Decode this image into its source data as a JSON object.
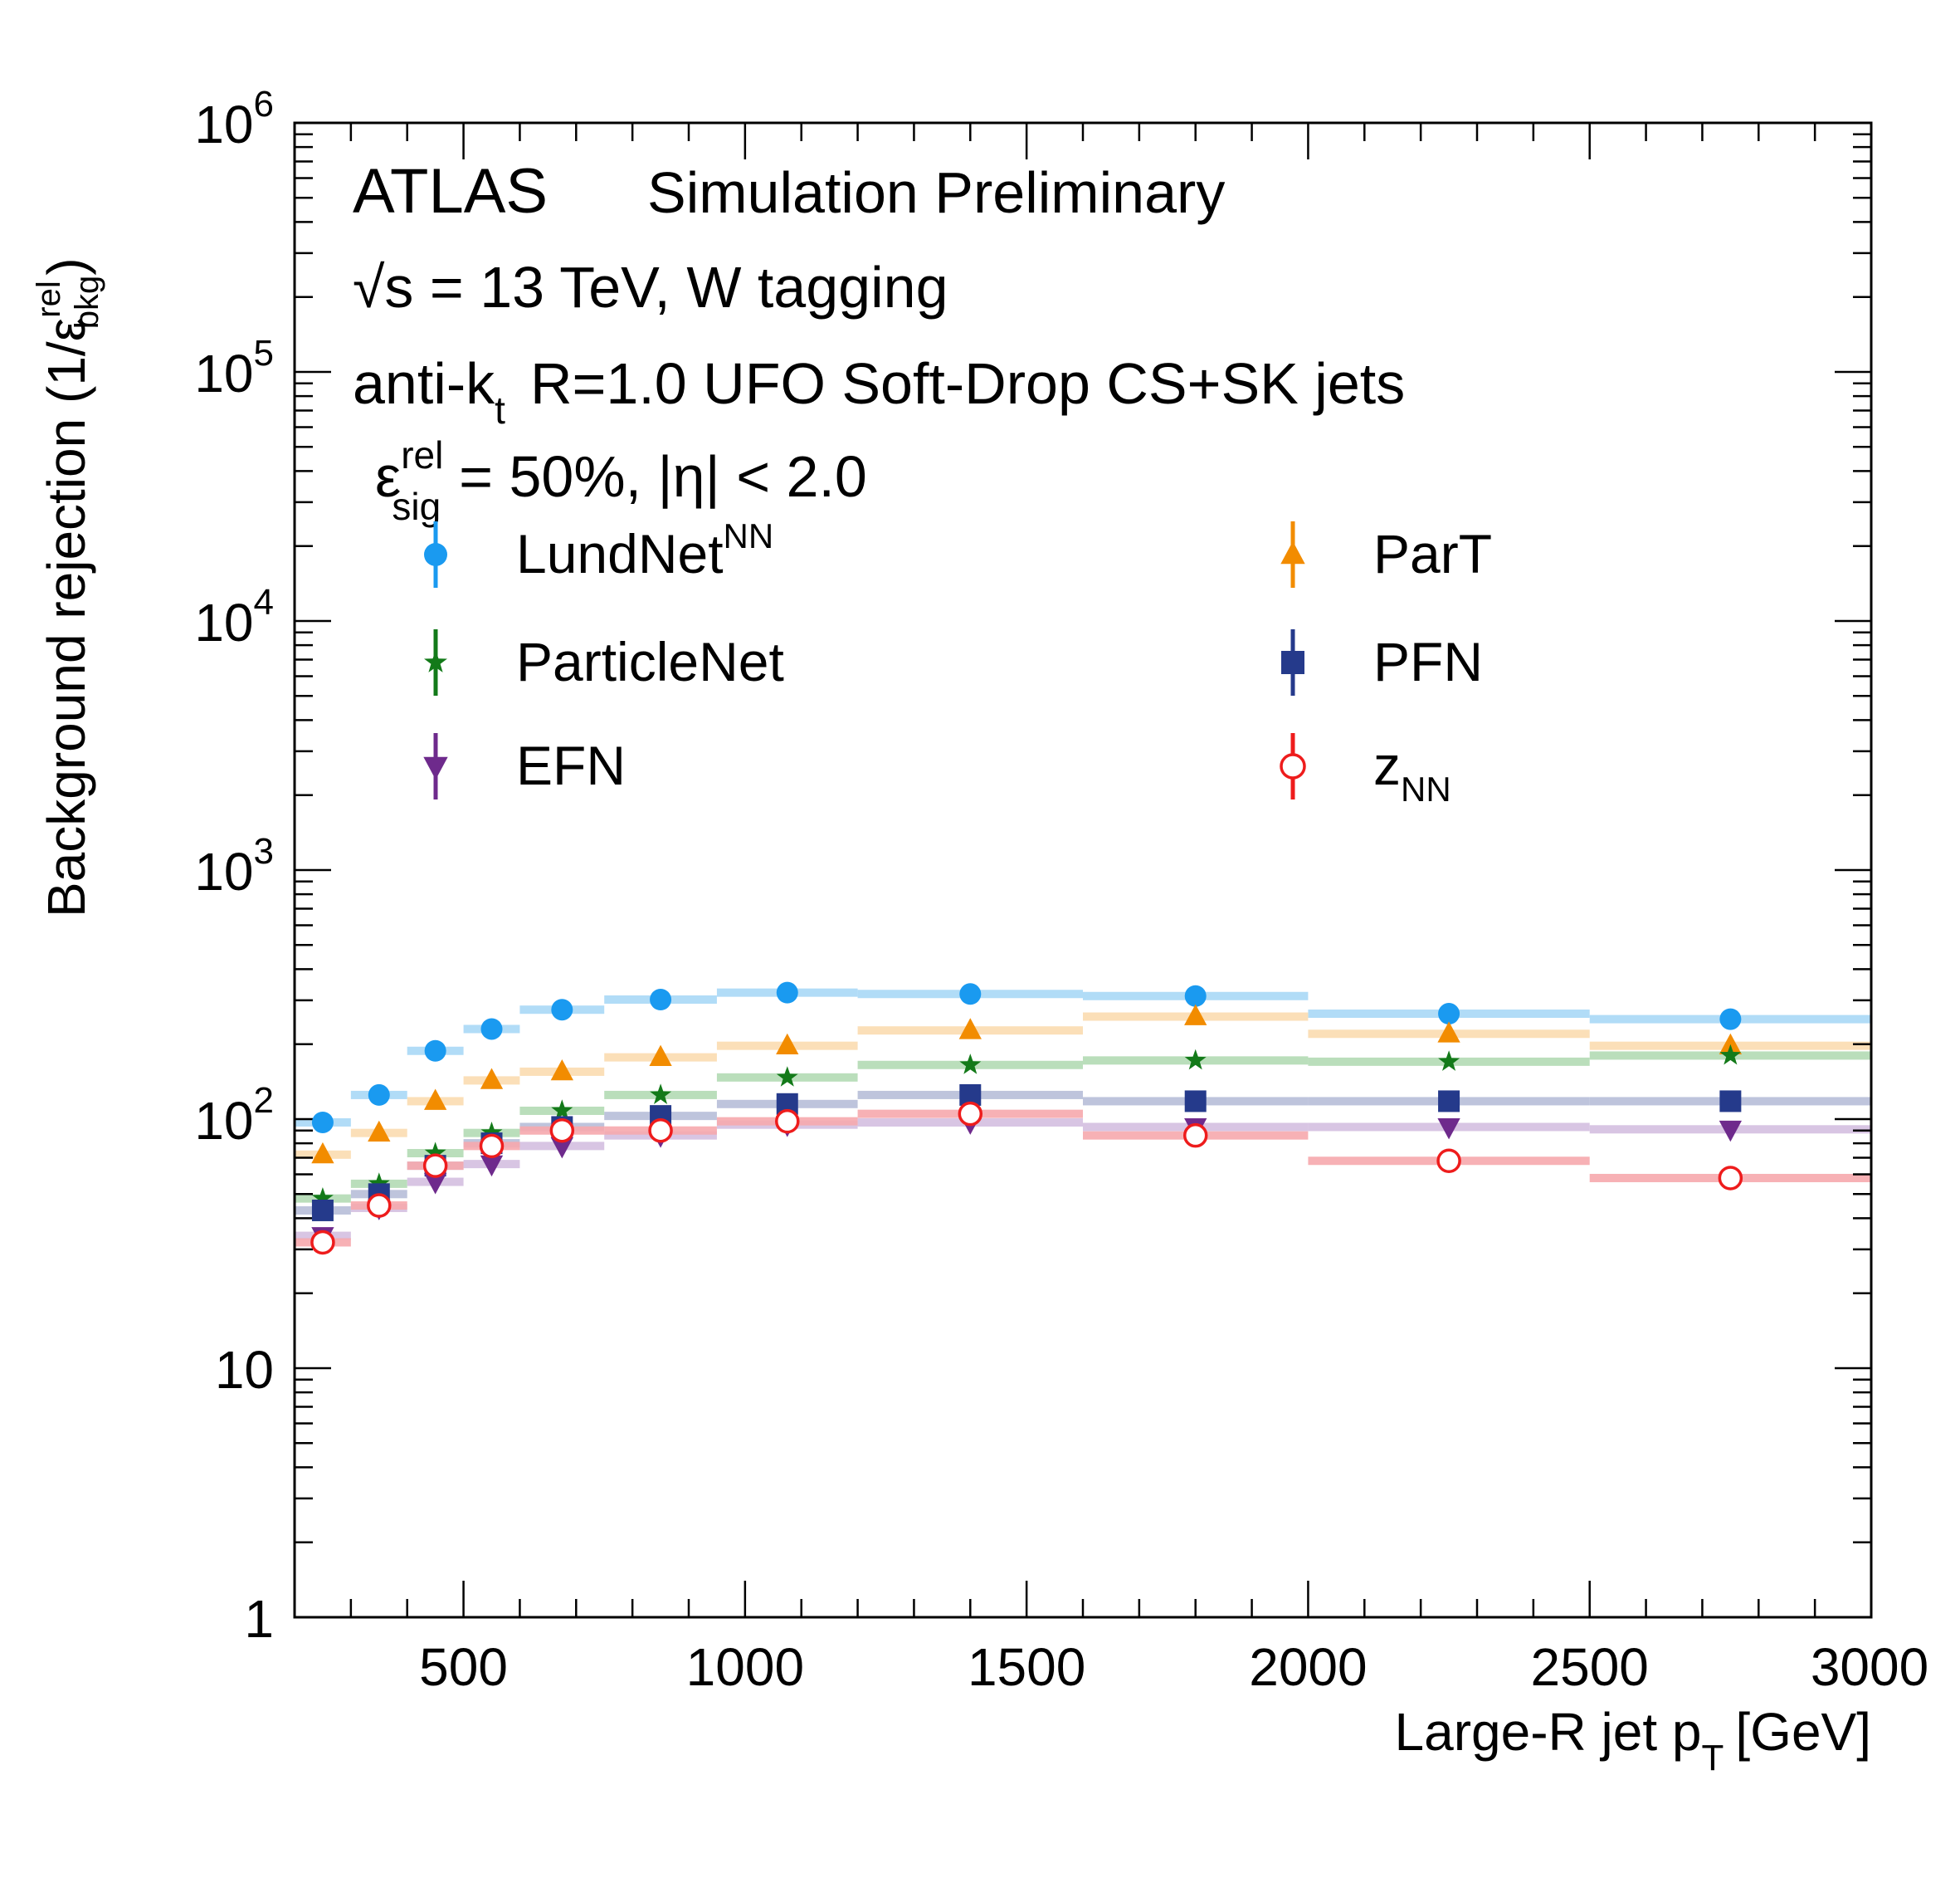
{
  "chart_data": {
    "type": "scatter",
    "title": "",
    "xlabel": "Large-R jet p",
    "xlabel_sub": "T",
    "xlabel_unit": "[GeV]",
    "ylabel": "Background rejection (1/ε",
    "ylabel_sup": "rel",
    "ylabel_sub": "bkg",
    "ylabel_close": ")",
    "yscale": "log",
    "xlim": [
      200,
      3000
    ],
    "ylim": [
      1,
      1000000
    ],
    "x_ticks": [
      500,
      1000,
      1500,
      2000,
      2500,
      3000
    ],
    "x_tick_labels": [
      "500",
      "1000",
      "1500",
      "2000",
      "2500",
      "3000"
    ],
    "y_ticks": [
      1,
      10,
      100,
      1000,
      10000,
      100000,
      1000000
    ],
    "y_tick_labels": [
      {
        "base": "1",
        "exp": ""
      },
      {
        "base": "10",
        "exp": ""
      },
      {
        "base": "10",
        "exp": "2"
      },
      {
        "base": "10",
        "exp": "3"
      },
      {
        "base": "10",
        "exp": "4"
      },
      {
        "base": "10",
        "exp": "5"
      },
      {
        "base": "10",
        "exp": "6"
      }
    ],
    "annotations": {
      "atlas": "ATLAS",
      "status": "Simulation Preliminary",
      "energy_sqrt": "√",
      "energy_rest": "s = 13 TeV, W  tagging",
      "jets_pre": "anti-k",
      "jets_sub": "t",
      "jets_post": "R=1.0 UFO Soft-Drop CS+SK jets",
      "eff_eps": "ε",
      "eff_sup": "rel",
      "eff_sub": "sig",
      "eff_rest": "= 50%, |η| < 2.0"
    },
    "bins": [
      [
        200,
        300
      ],
      [
        300,
        400
      ],
      [
        400,
        500
      ],
      [
        500,
        600
      ],
      [
        600,
        750
      ],
      [
        750,
        950
      ],
      [
        950,
        1200
      ],
      [
        1200,
        1600
      ],
      [
        1600,
        2000
      ],
      [
        2000,
        2500
      ],
      [
        2500,
        3000
      ]
    ],
    "x": [
      250,
      350,
      450,
      550,
      675,
      850,
      1075,
      1400,
      1800,
      2250,
      2750
    ],
    "series": [
      {
        "name": "LundNet",
        "name_sup": "NN",
        "name_sub": "",
        "marker": "circle",
        "color": "#1a9af0",
        "band": "#a8d8f6",
        "values": [
          97,
          125,
          188,
          230,
          275,
          302,
          322,
          318,
          312,
          265,
          252
        ]
      },
      {
        "name": "ParT",
        "name_sup": "",
        "name_sub": "",
        "marker": "triangle-up",
        "color": "#f28c00",
        "band": "#fbdcb0",
        "values": [
          72,
          88,
          118,
          143,
          155,
          177,
          197,
          227,
          258,
          220,
          197
        ]
      },
      {
        "name": "ParticleNet",
        "name_sup": "",
        "name_sub": "",
        "marker": "star",
        "color": "#137a19",
        "band": "#b3dab4",
        "values": [
          48,
          55,
          73,
          88,
          108,
          125,
          147,
          165,
          172,
          170,
          180
        ]
      },
      {
        "name": "PFN",
        "name_sup": "",
        "name_sub": "",
        "marker": "square",
        "color": "#253a8b",
        "band": "#b7bed8",
        "values": [
          43,
          50,
          65,
          80,
          93,
          103,
          115,
          125,
          118,
          118,
          118
        ]
      },
      {
        "name": "EFN",
        "name_sup": "",
        "name_sub": "",
        "marker": "triangle-down",
        "color": "#6e2a8c",
        "band": "#d4bfe0",
        "values": [
          34,
          44,
          56,
          66,
          78,
          86,
          95,
          97,
          93,
          93,
          91
        ]
      },
      {
        "name": "z",
        "name_sup": "",
        "name_sub": "NN",
        "marker": "open-circle",
        "color": "#ee1c1c",
        "band": "#f6a9ad",
        "values": [
          32,
          45,
          65,
          78,
          90,
          90,
          98,
          105,
          86,
          68,
          58
        ]
      }
    ],
    "legend_position": "upper-left, two columns"
  }
}
